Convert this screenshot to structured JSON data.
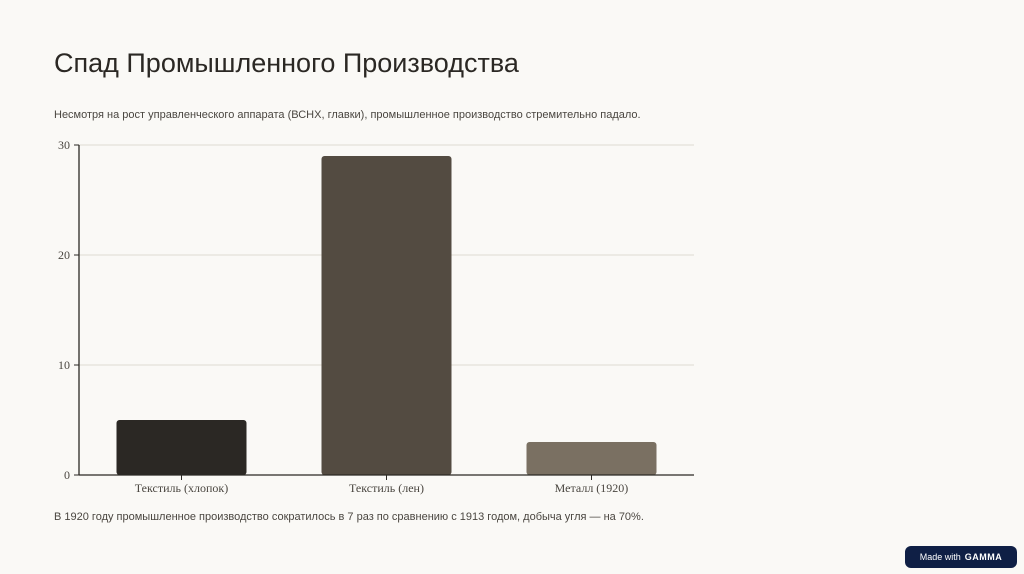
{
  "page": {
    "title": "Спад Промышленного Производства",
    "subtitle": "Несмотря на рост управленческого аппарата (ВСНХ, главки), промышленное производство стремительно падало.",
    "footer_note": "В 1920 году промышленное производство сократилось в 7 раз по сравнению с 1913 годом, добыча угля — на 70%.",
    "badge": {
      "prefix": "Made with",
      "brand": "GAMMA"
    }
  },
  "chart_data": {
    "type": "bar",
    "categories": [
      "Текстиль (хлопок)",
      "Текстиль (лен)",
      "Металл (1920)"
    ],
    "values": [
      5,
      29,
      3
    ],
    "colors": [
      "#2b2824",
      "#534b41",
      "#7a7062"
    ],
    "ylim": [
      0,
      30
    ],
    "yticks": [
      0,
      10,
      20,
      30
    ],
    "grid": true,
    "xlabel": "",
    "ylabel": ""
  }
}
